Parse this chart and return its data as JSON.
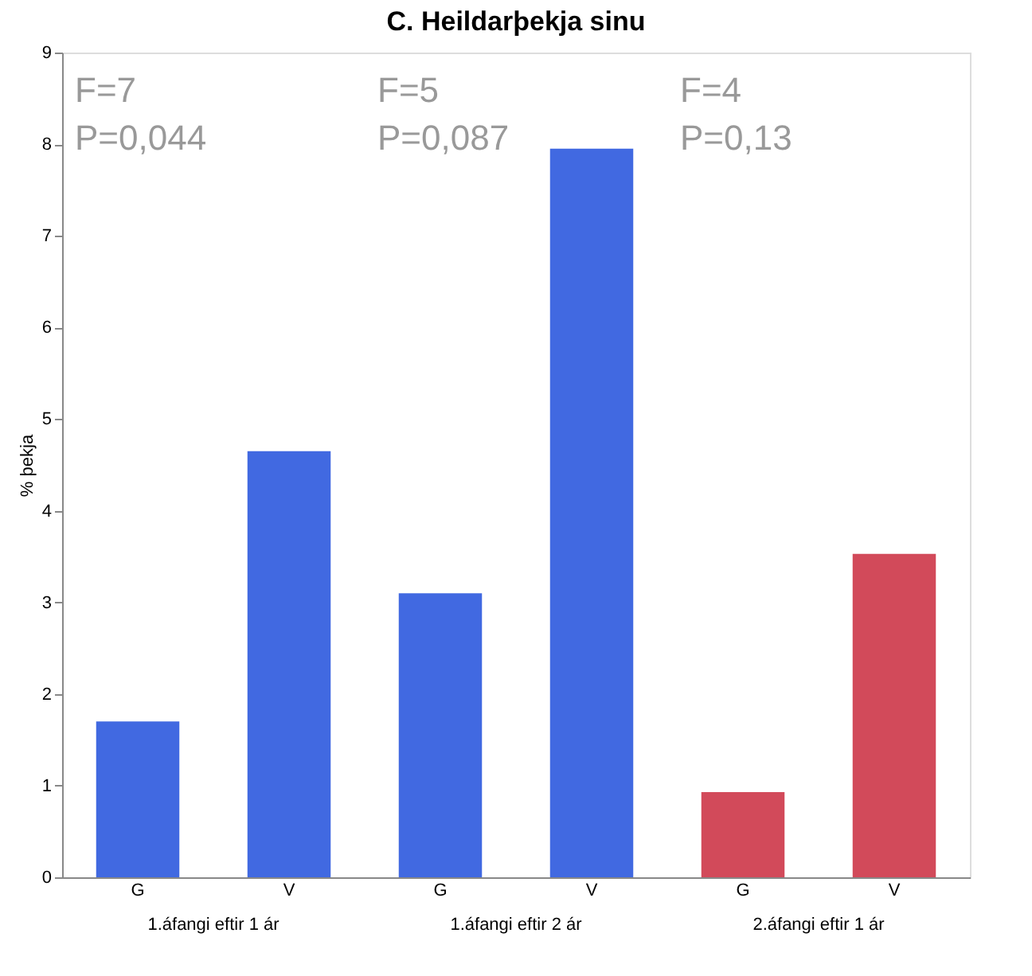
{
  "chart_data": {
    "type": "bar",
    "title": "C. Heildarþekja sinu",
    "ylabel": "% þekja",
    "categories": [
      "G",
      "V",
      "G",
      "V",
      "G",
      "V"
    ],
    "values": [
      1.7,
      4.65,
      3.1,
      7.95,
      0.93,
      3.53
    ],
    "colors": [
      "#4169e1",
      "#4169e1",
      "#4169e1",
      "#4169e1",
      "#d24a5a",
      "#d24a5a"
    ],
    "ylim": [
      0,
      9
    ],
    "yticks": [
      0,
      1,
      2,
      3,
      4,
      5,
      6,
      7,
      8,
      9
    ],
    "grid": false,
    "annotations": [
      "F=7\nP=0,044",
      "F=5\nP=0,087",
      "F=4\nP=0,13",
      "1.áfangi eftir 1 ár",
      "1.áfangi eftir 2 ár",
      "2.áfangi eftir 1 ár"
    ]
  }
}
